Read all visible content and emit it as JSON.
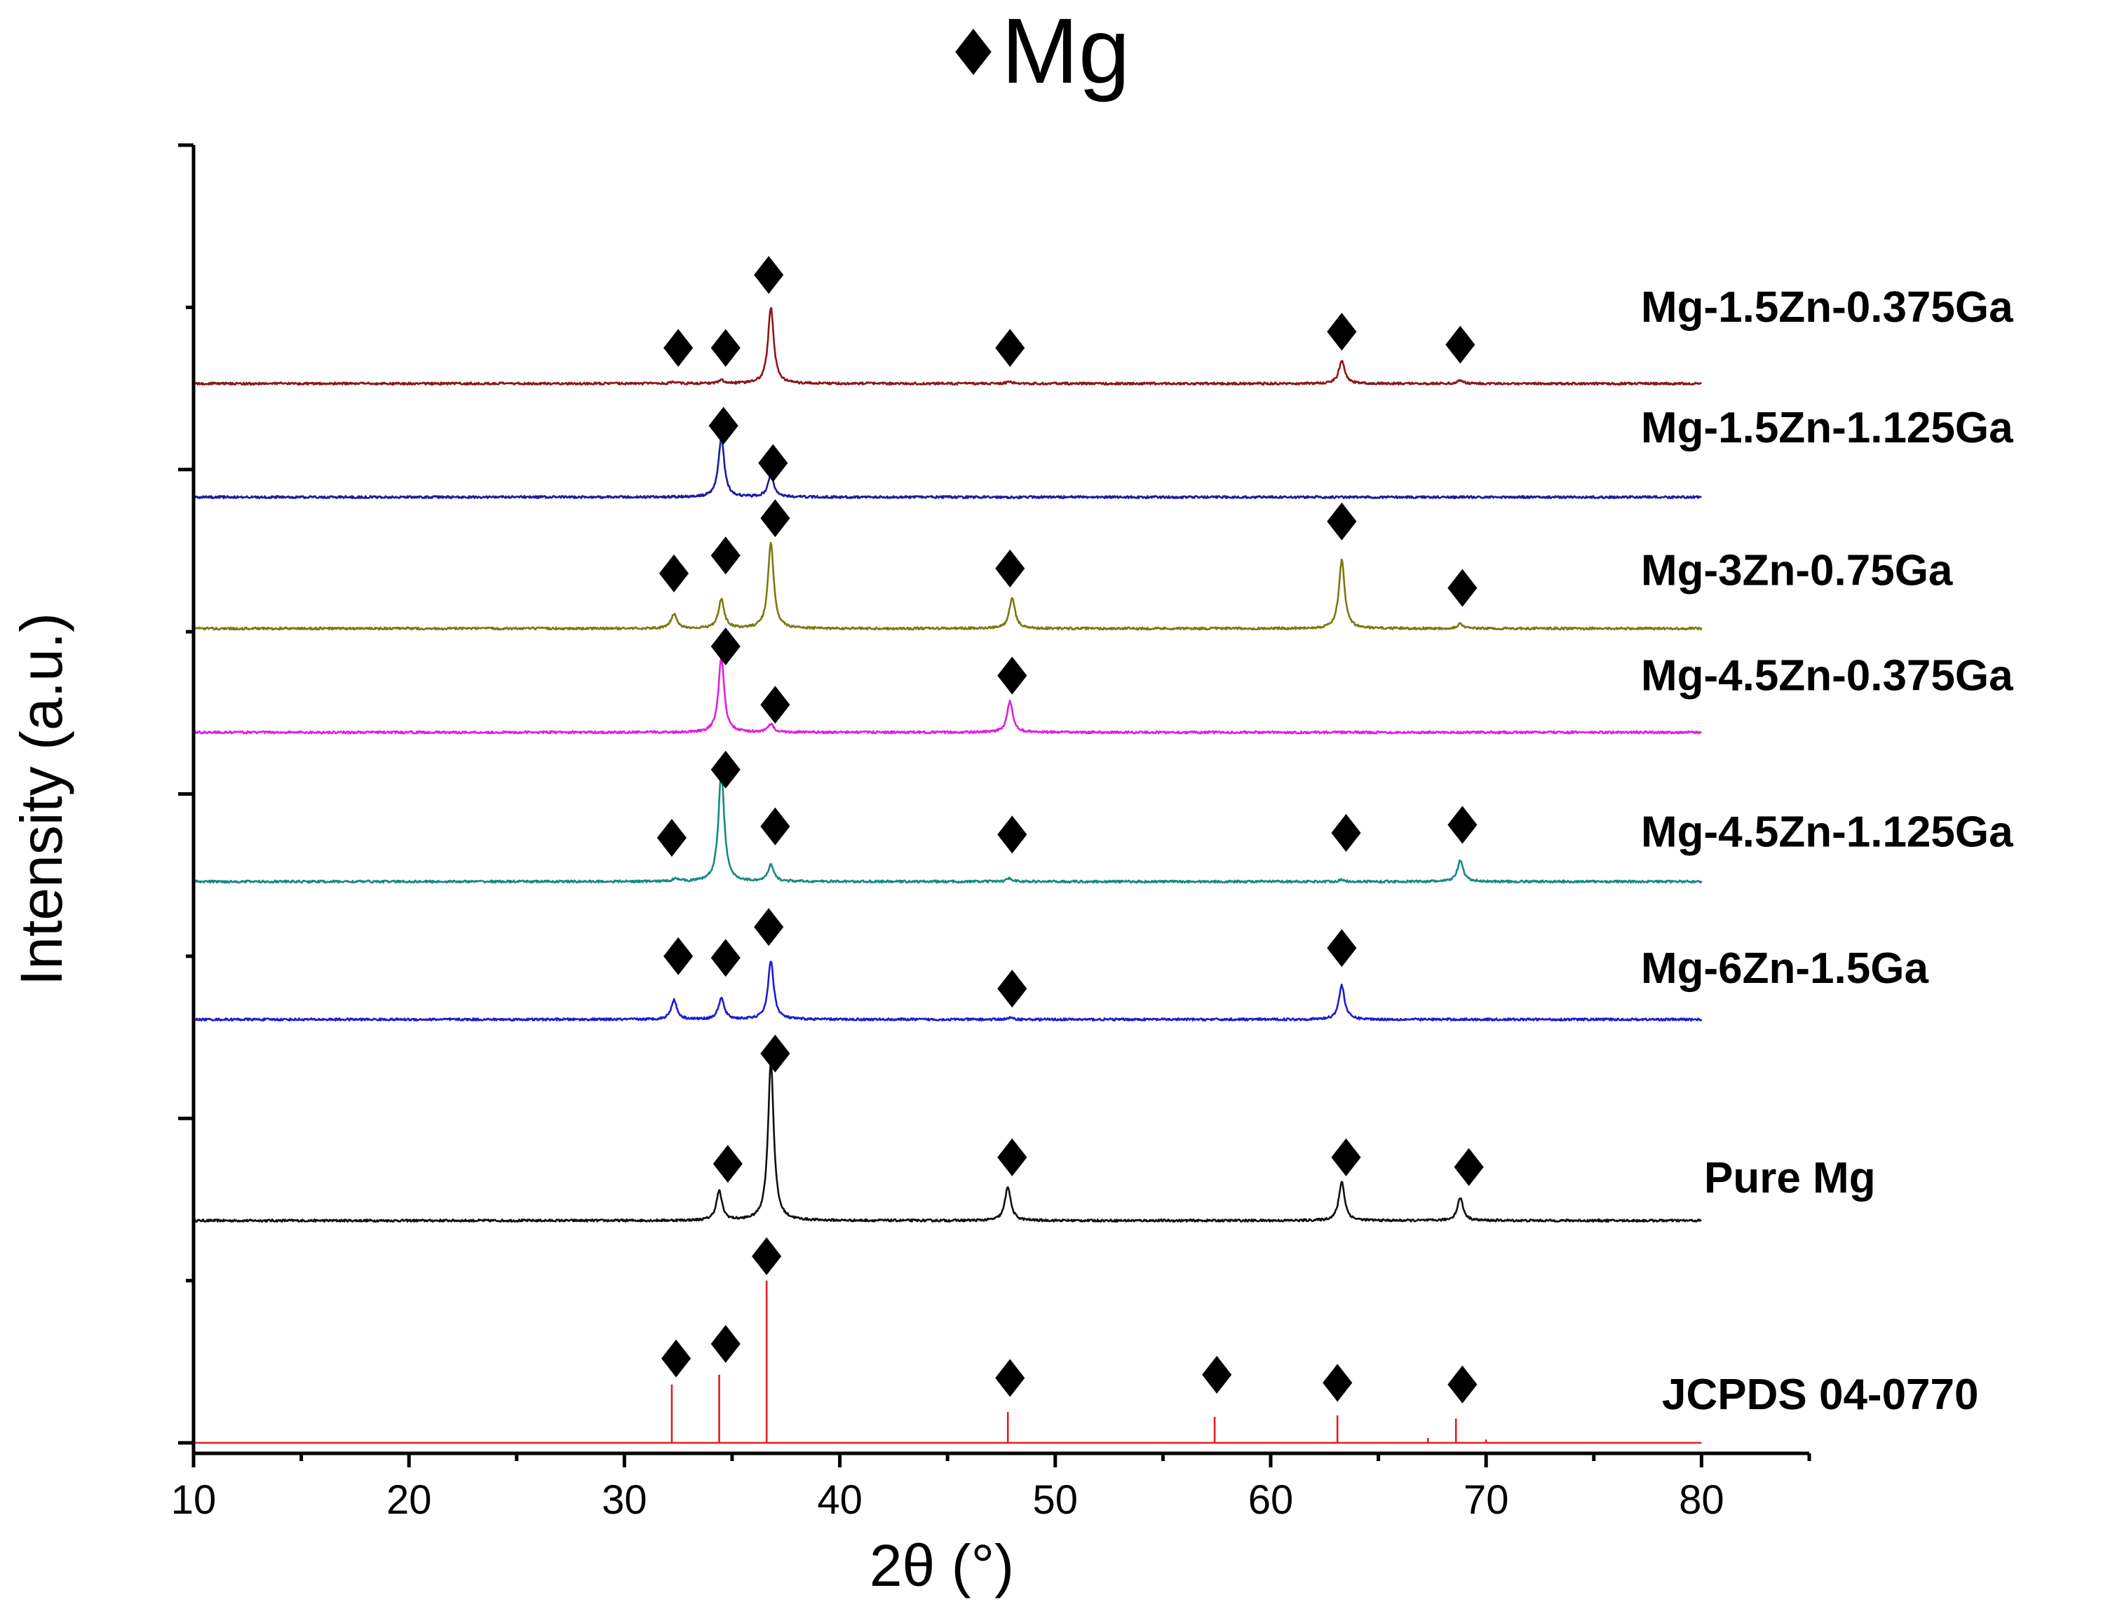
{
  "chart_data": {
    "type": "line",
    "xlabel": "2θ (°)",
    "ylabel": "Intensity (a.u.)",
    "xlim": [
      10,
      85
    ],
    "xticks": [
      10,
      20,
      30,
      40,
      50,
      60,
      70,
      80
    ],
    "ylim": [
      0,
      8
    ],
    "y_tick_labels_shown": false,
    "legend": {
      "marker": "diamond",
      "label": "Mg",
      "placement": "top-center"
    },
    "series": [
      {
        "name": "JCPDS 04-0770",
        "color": "#e02020",
        "style": "stick",
        "baseline": 0,
        "sticks": [
          {
            "x": 32.2,
            "y": 0.36
          },
          {
            "x": 34.4,
            "y": 0.42
          },
          {
            "x": 36.6,
            "y": 1.0
          },
          {
            "x": 47.8,
            "y": 0.19
          },
          {
            "x": 57.4,
            "y": 0.16
          },
          {
            "x": 63.1,
            "y": 0.17
          },
          {
            "x": 67.3,
            "y": 0.03
          },
          {
            "x": 68.6,
            "y": 0.15
          },
          {
            "x": 70.0,
            "y": 0.02
          }
        ],
        "markers": [
          {
            "x": 32.4,
            "y": 0.52
          },
          {
            "x": 34.7,
            "y": 0.61
          },
          {
            "x": 36.6,
            "y": 1.15
          },
          {
            "x": 47.9,
            "y": 0.4
          },
          {
            "x": 57.5,
            "y": 0.42
          },
          {
            "x": 63.1,
            "y": 0.37
          },
          {
            "x": 68.9,
            "y": 0.36
          }
        ]
      },
      {
        "name": "Pure Mg",
        "color": "#101010",
        "style": "profile",
        "baseline": 1.37,
        "peaks": [
          {
            "x": 34.4,
            "height": 0.18
          },
          {
            "x": 36.8,
            "height": 0.98
          },
          {
            "x": 47.8,
            "height": 0.21
          },
          {
            "x": 63.3,
            "height": 0.24
          },
          {
            "x": 68.8,
            "height": 0.14
          }
        ],
        "markers": [
          {
            "x": 34.8,
            "y": 1.72
          },
          {
            "x": 37.0,
            "y": 2.4
          },
          {
            "x": 48.0,
            "y": 1.76
          },
          {
            "x": 63.5,
            "y": 1.76
          },
          {
            "x": 69.2,
            "y": 1.7
          }
        ]
      },
      {
        "name": "Mg-6Zn-1.5Ga",
        "color": "#1c1cd0",
        "style": "profile",
        "baseline": 2.61,
        "peaks": [
          {
            "x": 32.3,
            "height": 0.12
          },
          {
            "x": 34.5,
            "height": 0.13
          },
          {
            "x": 36.8,
            "height": 0.36
          },
          {
            "x": 47.9,
            "height": 0.01
          },
          {
            "x": 63.3,
            "height": 0.21
          }
        ],
        "markers": [
          {
            "x": 32.5,
            "y": 3.0
          },
          {
            "x": 34.7,
            "y": 2.99
          },
          {
            "x": 36.7,
            "y": 3.18
          },
          {
            "x": 48.0,
            "y": 2.8
          },
          {
            "x": 63.3,
            "y": 3.05
          }
        ]
      },
      {
        "name": "Mg-4.5Zn-1.125Ga",
        "color": "#168a80",
        "style": "profile",
        "baseline": 3.46,
        "peaks": [
          {
            "x": 32.4,
            "height": 0.02
          },
          {
            "x": 34.5,
            "height": 0.68
          },
          {
            "x": 36.8,
            "height": 0.1
          },
          {
            "x": 47.9,
            "height": 0.02
          },
          {
            "x": 63.3,
            "height": 0.01
          },
          {
            "x": 68.8,
            "height": 0.13
          }
        ],
        "markers": [
          {
            "x": 32.2,
            "y": 3.73
          },
          {
            "x": 34.7,
            "y": 4.15
          },
          {
            "x": 37.0,
            "y": 3.8
          },
          {
            "x": 48.0,
            "y": 3.75
          },
          {
            "x": 63.5,
            "y": 3.76
          },
          {
            "x": 68.9,
            "y": 3.81
          }
        ]
      },
      {
        "name": "Mg-4.5Zn-0.375Ga",
        "color": "#e020e0",
        "style": "profile",
        "baseline": 4.38,
        "peaks": [
          {
            "x": 34.5,
            "height": 0.46
          },
          {
            "x": 36.8,
            "height": 0.05
          },
          {
            "x": 47.9,
            "height": 0.19
          }
        ],
        "markers": [
          {
            "x": 34.7,
            "y": 4.91
          },
          {
            "x": 37.0,
            "y": 4.55
          },
          {
            "x": 48.0,
            "y": 4.73
          }
        ]
      },
      {
        "name": "Mg-3Zn-0.75Ga",
        "color": "#7a7a10",
        "style": "profile",
        "baseline": 5.02,
        "peaks": [
          {
            "x": 32.3,
            "height": 0.09
          },
          {
            "x": 34.5,
            "height": 0.18
          },
          {
            "x": 36.8,
            "height": 0.53
          },
          {
            "x": 48.0,
            "height": 0.19
          },
          {
            "x": 63.3,
            "height": 0.42
          },
          {
            "x": 68.8,
            "height": 0.03
          }
        ],
        "markers": [
          {
            "x": 32.3,
            "y": 5.36
          },
          {
            "x": 34.7,
            "y": 5.47
          },
          {
            "x": 37.0,
            "y": 5.7
          },
          {
            "x": 47.9,
            "y": 5.39
          },
          {
            "x": 63.3,
            "y": 5.68
          },
          {
            "x": 68.9,
            "y": 5.27
          }
        ]
      },
      {
        "name": "Mg-1.5Zn-1.125Ga",
        "color": "#1c1c9e",
        "style": "profile",
        "baseline": 5.83,
        "peaks": [
          {
            "x": 34.5,
            "height": 0.37
          },
          {
            "x": 36.8,
            "height": 0.14
          }
        ],
        "markers": [
          {
            "x": 34.6,
            "y": 6.27
          },
          {
            "x": 36.9,
            "y": 6.04
          }
        ]
      },
      {
        "name": "Mg-1.5Zn-0.375Ga",
        "color": "#8a1818",
        "style": "profile",
        "baseline": 6.53,
        "peaks": [
          {
            "x": 32.3,
            "height": 0.01
          },
          {
            "x": 34.5,
            "height": 0.02
          },
          {
            "x": 36.8,
            "height": 0.47
          },
          {
            "x": 47.9,
            "height": 0.01
          },
          {
            "x": 63.3,
            "height": 0.14
          },
          {
            "x": 68.8,
            "height": 0.02
          }
        ],
        "markers": [
          {
            "x": 32.5,
            "y": 6.75
          },
          {
            "x": 34.7,
            "y": 6.75
          },
          {
            "x": 36.7,
            "y": 7.2
          },
          {
            "x": 47.9,
            "y": 6.75
          },
          {
            "x": 63.3,
            "y": 6.85
          },
          {
            "x": 68.8,
            "y": 6.77
          }
        ]
      }
    ]
  }
}
